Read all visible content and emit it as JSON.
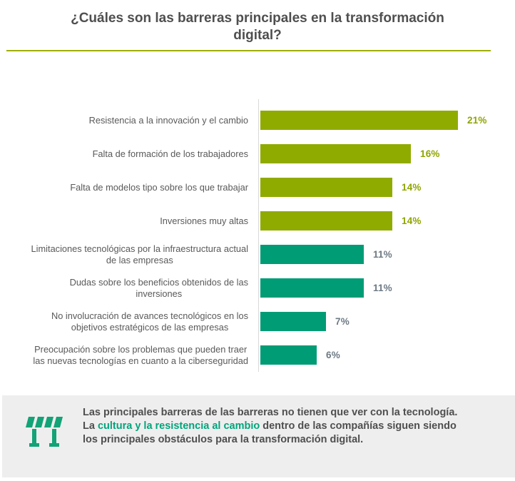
{
  "header": {
    "title": "¿Cuáles son las barreras principales en la transformación\ndigital?",
    "underline_color": "#9fae06",
    "title_color": "#4f4f4f"
  },
  "chart_data": {
    "type": "bar",
    "orientation": "horizontal",
    "title": "¿Cuáles son las barreras principales en la transformación digital?",
    "categories": [
      "Resistencia a la innovación y el cambio",
      "Falta de formación de los trabajadores",
      "Falta de modelos tipo sobre los que trabajar",
      "Inversiones muy altas",
      "Limitaciones tecnológicas por la infraestructura actual\nde las empresas",
      "Dudas sobre los beneficios obtenidos de las\ninversiones",
      "No involucración de avances tecnológicos en los\nobjetivos estratégicos de las empresas",
      "Preocupación sobre los problemas que pueden traer\nlas nuevas tecnologías en cuanto a la ciberseguridad"
    ],
    "values": [
      21,
      16,
      14,
      14,
      11,
      11,
      7,
      6
    ],
    "value_labels": [
      "21%",
      "16%",
      "14%",
      "14%",
      "11%",
      "11%",
      "7%",
      "6%"
    ],
    "bar_colors": [
      "#90ab00",
      "#90ab00",
      "#90ab00",
      "#90ab00",
      "#009c76",
      "#009c76",
      "#009c76",
      "#009c76"
    ],
    "value_label_colors": [
      "#8fa400",
      "#8fa400",
      "#8fa400",
      "#8fa400",
      "#6e7a84",
      "#6e7a84",
      "#6e7a84",
      "#6e7a84"
    ],
    "xlim": [
      0,
      22
    ],
    "grid": false,
    "legend": "none",
    "axis_line_color": "#d9d9d9",
    "category_label_color": "#595959"
  },
  "footer": {
    "icon": "barrier-icon",
    "icon_color": "#12a377",
    "background": "#efeeee",
    "text_before": "Las principales barreras de las barreras no tienen que ver con la tecnología. La ",
    "highlight": "cultura y la resistencia al cambio",
    "text_after": " dentro de las compañías siguen siendo los principales obstáculos para la transformación digital.",
    "highlight_color": "#00a57c"
  }
}
